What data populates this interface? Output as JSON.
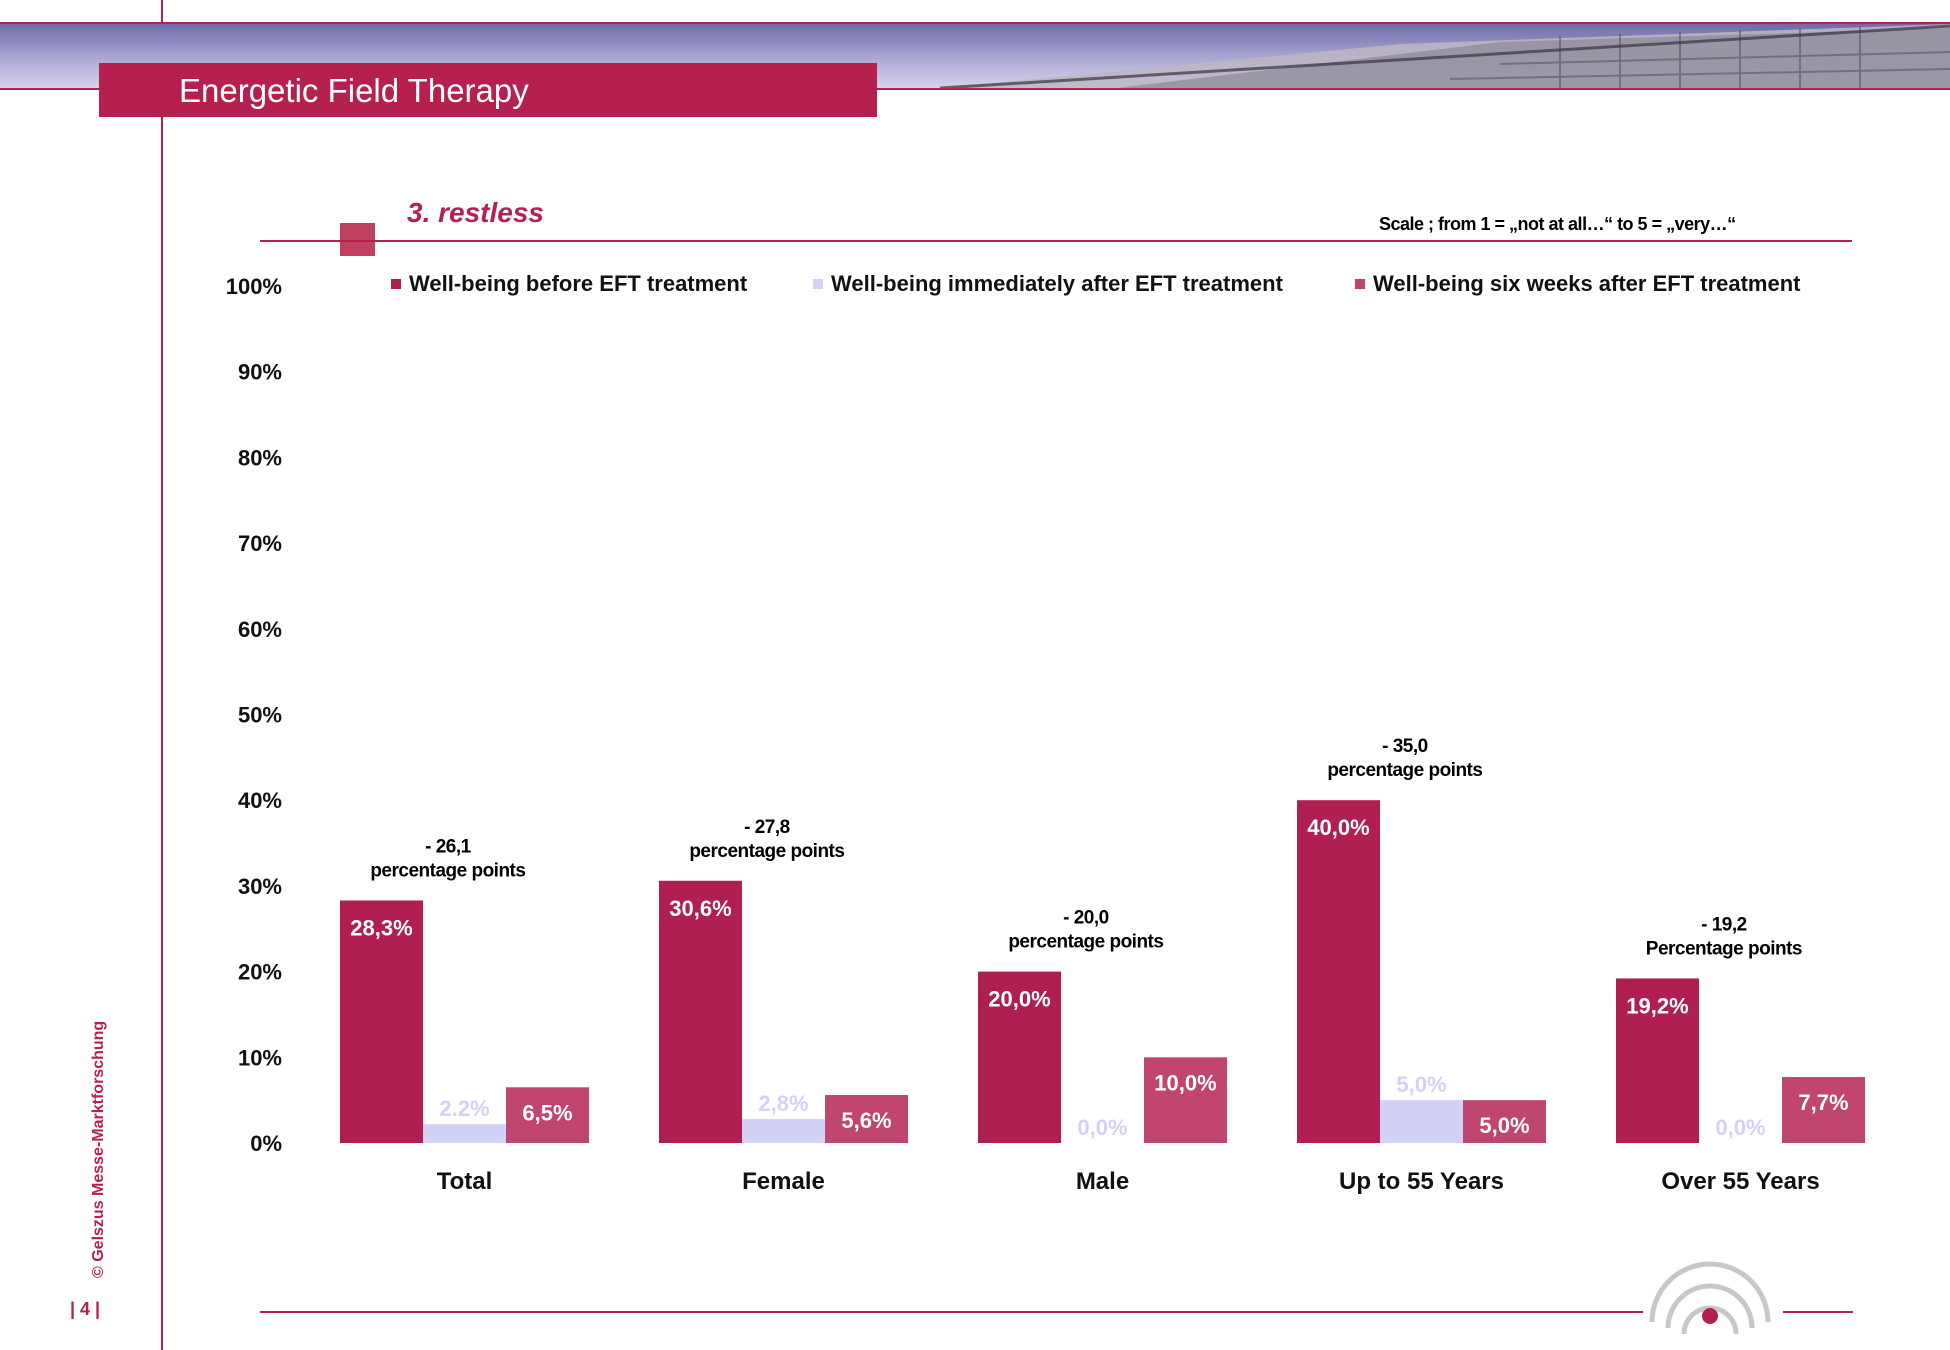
{
  "header": {
    "title": "Energetic Field Therapy",
    "subtitle": "3. restless",
    "scale_note": "Scale ; from 1 = „not at all…“  to 5 = „very…“"
  },
  "footer": {
    "copyright": "© Gelszus Messe-Marktforschung",
    "page_number": "| 4 |"
  },
  "colors": {
    "accent": "#b5204f",
    "before": "#b01f52",
    "immediately": "#d2d2f6",
    "six_weeks": "#c1466f"
  },
  "chart_data": {
    "type": "bar",
    "categories": [
      "Total",
      "Female",
      "Male",
      "Up to 55 Years",
      "Over 55 Years"
    ],
    "series": [
      {
        "name": "Well-being before EFT treatment",
        "values": [
          28.3,
          30.6,
          20.0,
          40.0,
          19.2
        ],
        "labels": [
          "28,3%",
          "30,6%",
          "20,0%",
          "40,0%",
          "19,2%"
        ]
      },
      {
        "name": "Well-being immediately after EFT treatment",
        "values": [
          2.2,
          2.8,
          0.0,
          5.0,
          0.0
        ],
        "labels": [
          "2.2%",
          "2,8%",
          "0,0%",
          "5,0%",
          "0,0%"
        ]
      },
      {
        "name": "Well-being six weeks after EFT treatment",
        "values": [
          6.5,
          5.6,
          10.0,
          5.0,
          7.7
        ],
        "labels": [
          "6,5%",
          "5,6%",
          "10,0%",
          "5,0%",
          "7,7%"
        ]
      }
    ],
    "ylim": [
      0,
      100
    ],
    "yticks": [
      "0%",
      "10%",
      "20%",
      "30%",
      "40%",
      "50%",
      "60%",
      "70%",
      "80%",
      "90%",
      "100%"
    ],
    "grid": false,
    "legend": "top",
    "annotations": [
      {
        "line1": "- 26,1",
        "line2": "percentage points"
      },
      {
        "line1": "- 27,8",
        "line2": "percentage points"
      },
      {
        "line1": "- 20,0",
        "line2": "percentage points"
      },
      {
        "line1": "- 35,0",
        "line2": "percentage points"
      },
      {
        "line1": "- 19,2",
        "line2": "Percentage points"
      }
    ]
  }
}
